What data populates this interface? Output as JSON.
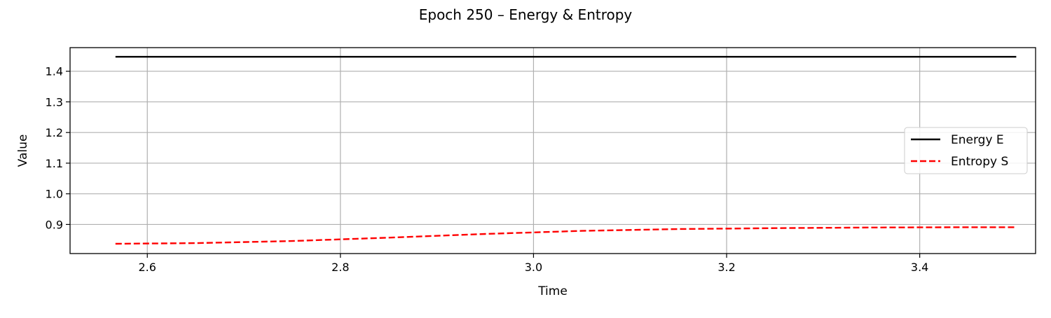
{
  "chart_data": {
    "type": "line",
    "title": "Epoch 250 – Energy & Entropy",
    "xlabel": "Time",
    "ylabel": "Value",
    "xlim": [
      2.52,
      3.52
    ],
    "ylim": [
      0.805,
      1.477
    ],
    "xticks": [
      2.6,
      2.8,
      3.0,
      3.2,
      3.4
    ],
    "xtick_labels": [
      "2.6",
      "2.8",
      "3.0",
      "3.2",
      "3.4"
    ],
    "yticks": [
      0.9,
      1.0,
      1.1,
      1.2,
      1.3,
      1.4
    ],
    "ytick_labels": [
      "0.9",
      "1.0",
      "1.1",
      "1.2",
      "1.3",
      "1.4"
    ],
    "grid": true,
    "legend_position": "center-right",
    "series": [
      {
        "name": "Energy E",
        "color": "#000000",
        "style": "solid",
        "x": [
          2.567,
          2.8,
          3.0,
          3.2,
          3.4,
          3.5
        ],
        "y": [
          1.447,
          1.447,
          1.447,
          1.447,
          1.447,
          1.447
        ]
      },
      {
        "name": "Entropy S",
        "color": "#ff0000",
        "style": "dashed",
        "x": [
          2.567,
          2.65,
          2.75,
          2.85,
          2.95,
          3.05,
          3.15,
          3.25,
          3.35,
          3.45,
          3.5
        ],
        "y": [
          0.837,
          0.839,
          0.846,
          0.857,
          0.869,
          0.879,
          0.885,
          0.888,
          0.89,
          0.891,
          0.891
        ]
      }
    ]
  }
}
